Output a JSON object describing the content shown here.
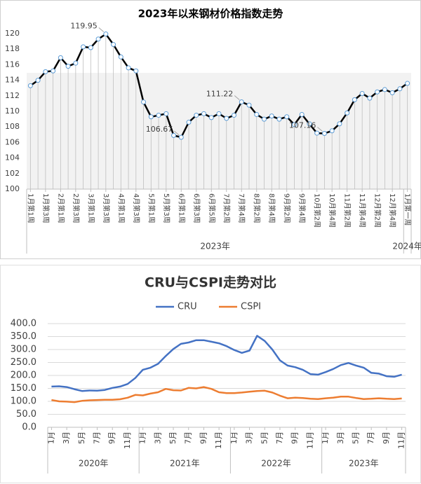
{
  "chart_data": [
    {
      "type": "line",
      "title": "2023年以来钢材价格指数走势",
      "categories": [
        "1月第1周",
        null,
        "1月第3周",
        null,
        "2月第1周",
        null,
        "2月第3周",
        null,
        "3月第1周",
        null,
        "3月第3周",
        null,
        "4月第1周",
        null,
        "4月第3周",
        null,
        "5月第1周",
        null,
        "5月第3周",
        null,
        "6月第1周",
        null,
        "6月第3周",
        null,
        "6月第5周",
        null,
        "7月第2周",
        null,
        "7月第4周",
        null,
        "8月第2周",
        null,
        "8月第4周",
        null,
        "9月第2周",
        null,
        "9月第4周",
        null,
        "10月第2周",
        null,
        "10月第4周",
        null,
        "11月第2周",
        null,
        "11月第4周",
        null,
        "12月第2周",
        null,
        "12月第4周",
        null,
        "1月第一周"
      ],
      "groups": [
        {
          "label": "2023年",
          "span": 50
        },
        {
          "label": "2024年",
          "span": 1
        }
      ],
      "values": [
        113.3,
        114.0,
        115.1,
        115.2,
        116.9,
        115.8,
        116.2,
        118.3,
        118.2,
        119.3,
        119.95,
        118.6,
        117.0,
        115.6,
        115.2,
        111.2,
        109.3,
        109.5,
        109.7,
        106.9,
        106.67,
        108.6,
        109.5,
        109.7,
        109.2,
        109.7,
        109.1,
        109.5,
        111.22,
        110.8,
        109.6,
        109.0,
        109.4,
        109.0,
        109.3,
        108.3,
        109.6,
        108.4,
        107.2,
        107.16,
        107.5,
        108.4,
        109.8,
        111.5,
        112.3,
        111.7,
        112.5,
        112.8,
        112.4,
        112.9,
        113.6
      ],
      "value_labels": [
        null,
        null,
        null,
        null,
        null,
        null,
        null,
        null,
        null,
        null,
        "119.95",
        null,
        null,
        null,
        null,
        null,
        null,
        null,
        null,
        null,
        "106.67",
        null,
        null,
        null,
        null,
        null,
        null,
        null,
        "111.22",
        null,
        null,
        null,
        null,
        null,
        null,
        null,
        null,
        null,
        null,
        "107.16",
        null,
        null,
        null,
        null,
        null,
        null,
        null,
        null,
        null,
        null,
        null
      ],
      "color": "#000000",
      "marker_color": "#5b9bd5",
      "drop_lines": true,
      "ylim": [
        100,
        120
      ],
      "yticks": [
        100,
        102,
        104,
        106,
        108,
        110,
        112,
        114,
        116,
        118,
        120
      ],
      "grid": false
    },
    {
      "type": "line",
      "title": "CRU与CSPI走势对比",
      "categories": [
        "1月",
        null,
        "3月",
        null,
        "5月",
        null,
        "7月",
        null,
        "9月",
        null,
        "11月",
        null,
        "1月",
        null,
        "3月",
        null,
        "5月",
        null,
        "7月",
        null,
        "9月",
        null,
        "11月",
        null,
        "1月",
        null,
        "3月",
        null,
        "5月",
        null,
        "7月",
        null,
        "9月",
        null,
        "11月",
        null,
        "1月",
        null,
        "3月",
        null,
        "5月",
        null,
        "7月",
        null,
        "9月",
        null,
        "11月"
      ],
      "groups": [
        {
          "label": "2020年",
          "span": 12
        },
        {
          "label": "2021年",
          "span": 12
        },
        {
          "label": "2022年",
          "span": 12
        },
        {
          "label": "2023年",
          "span": 11
        }
      ],
      "series": [
        {
          "name": "CRU",
          "color": "#4472c4",
          "values": [
            157,
            158,
            155,
            147,
            140,
            142,
            141,
            144,
            152,
            157,
            167,
            190,
            222,
            230,
            245,
            275,
            302,
            322,
            327,
            336,
            336,
            330,
            324,
            313,
            298,
            287,
            296,
            353,
            333,
            300,
            258,
            238,
            232,
            222,
            205,
            203,
            213,
            225,
            240,
            248,
            238,
            230,
            210,
            207,
            197,
            195,
            203
          ]
        },
        {
          "name": "CSPI",
          "color": "#ed7d31",
          "values": [
            105,
            100,
            99,
            97,
            102,
            104,
            105,
            106,
            106,
            108,
            114,
            125,
            123,
            130,
            135,
            148,
            143,
            142,
            152,
            150,
            155,
            148,
            135,
            132,
            132,
            134,
            137,
            140,
            141,
            134,
            122,
            112,
            114,
            113,
            110,
            109,
            112,
            114,
            118,
            118,
            113,
            109,
            110,
            112,
            110,
            109,
            111
          ]
        }
      ],
      "legend": "top",
      "ylim": [
        0,
        400
      ],
      "yticks": [
        {
          "value": 0,
          "label": "0.0"
        },
        {
          "value": 50,
          "label": "50.0"
        },
        {
          "value": 100,
          "label": "100.0"
        },
        {
          "value": 150,
          "label": "150.0"
        },
        {
          "value": 200,
          "label": "200.0"
        },
        {
          "value": 250,
          "label": "250.0"
        },
        {
          "value": 300,
          "label": "300.0"
        },
        {
          "value": 350,
          "label": "350.0"
        },
        {
          "value": 400,
          "label": "400.0"
        }
      ],
      "grid": true
    }
  ]
}
